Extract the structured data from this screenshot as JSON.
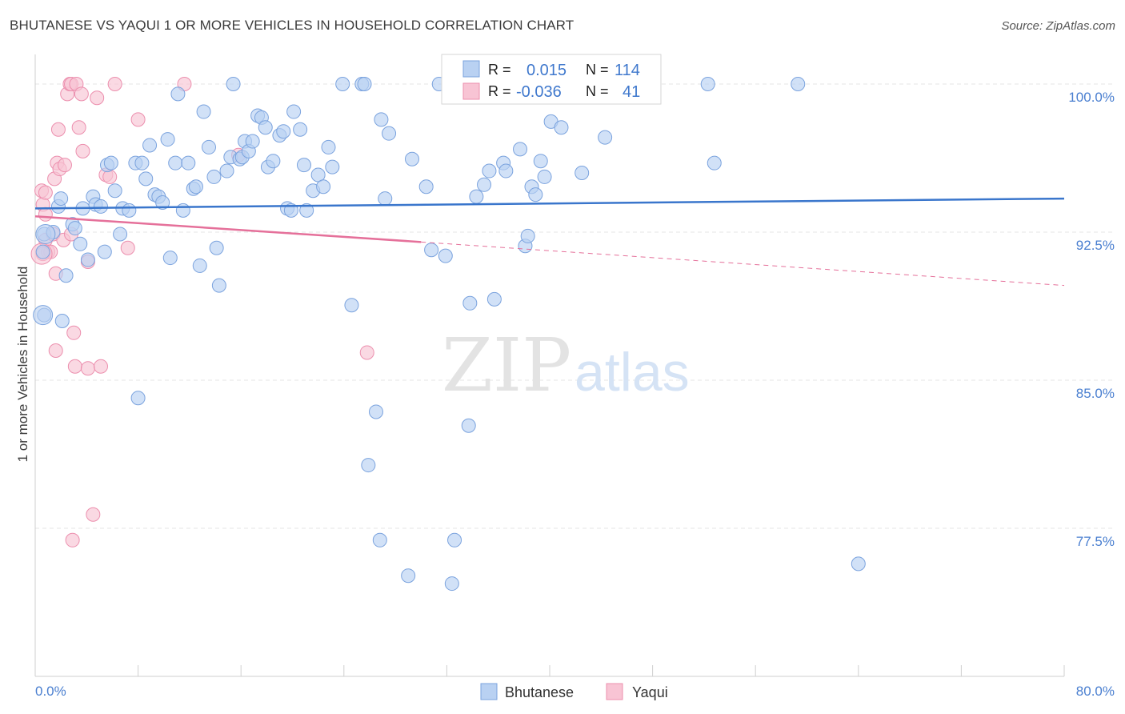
{
  "header": {
    "title": "BHUTANESE VS YAQUI 1 OR MORE VEHICLES IN HOUSEHOLD CORRELATION CHART",
    "source": "Source: ZipAtlas.com"
  },
  "watermark": {
    "zip": "ZIP",
    "atlas": "atlas"
  },
  "legend_box": {
    "rows": [
      {
        "r_label": "R =",
        "r_value": "0.015",
        "n_label": "N =",
        "n_value": "114",
        "color": "#b9d1f2"
      },
      {
        "r_label": "R =",
        "r_value": "-0.036",
        "n_label": "N =",
        "n_value": "41",
        "color": "#f8c4d4"
      }
    ]
  },
  "colors": {
    "blue_fill": "#b9d1f2",
    "blue_stroke": "#7ba3de",
    "blue_line": "#3a76cc",
    "pink_fill": "#f8c4d4",
    "pink_stroke": "#ec8fae",
    "pink_line": "#e5709a",
    "grid": "#e4e4e4",
    "tick_text": "#4a7fd0"
  },
  "chart_data": {
    "type": "scatter",
    "title": "BHUTANESE VS YAQUI 1 OR MORE VEHICLES IN HOUSEHOLD CORRELATION CHART",
    "xlabel": "",
    "ylabel": "1 or more Vehicles in Household",
    "xlim": [
      0,
      80
    ],
    "ylim": [
      70.0,
      101.5
    ],
    "x_tick_labels": [
      "0.0%",
      "80.0%"
    ],
    "y_ticks": [
      77.5,
      85.0,
      92.5,
      100.0
    ],
    "y_tick_labels": [
      "77.5%",
      "85.0%",
      "92.5%",
      "100.0%"
    ],
    "grid": true,
    "legend_placement": "bottom-center",
    "series": [
      {
        "name": "Bhutanese",
        "color": "#b9d1f2",
        "points": [
          [
            0.6,
            91.5
          ],
          [
            0.7,
            92.4
          ],
          [
            0.7,
            88.3
          ],
          [
            1.4,
            92.5
          ],
          [
            1.8,
            93.8
          ],
          [
            2.0,
            94.2
          ],
          [
            2.1,
            88.0
          ],
          [
            2.4,
            90.3
          ],
          [
            2.9,
            92.9
          ],
          [
            3.1,
            92.7
          ],
          [
            3.5,
            91.9
          ],
          [
            3.7,
            93.7
          ],
          [
            4.1,
            91.1
          ],
          [
            4.5,
            94.3
          ],
          [
            4.7,
            93.9
          ],
          [
            5.1,
            93.8
          ],
          [
            5.4,
            91.5
          ],
          [
            5.6,
            95.9
          ],
          [
            5.9,
            96.0
          ],
          [
            6.2,
            94.6
          ],
          [
            6.6,
            92.4
          ],
          [
            6.8,
            93.7
          ],
          [
            7.3,
            93.6
          ],
          [
            7.8,
            96.0
          ],
          [
            8.0,
            84.1
          ],
          [
            8.3,
            96.0
          ],
          [
            8.6,
            95.2
          ],
          [
            8.9,
            96.9
          ],
          [
            9.3,
            94.4
          ],
          [
            9.6,
            94.3
          ],
          [
            9.9,
            94.0
          ],
          [
            10.3,
            97.2
          ],
          [
            10.5,
            91.2
          ],
          [
            10.9,
            96.0
          ],
          [
            11.1,
            99.5
          ],
          [
            11.5,
            93.6
          ],
          [
            11.9,
            96.0
          ],
          [
            12.3,
            94.7
          ],
          [
            12.5,
            94.8
          ],
          [
            12.8,
            90.8
          ],
          [
            13.1,
            98.6
          ],
          [
            13.5,
            96.8
          ],
          [
            13.9,
            95.3
          ],
          [
            14.1,
            91.7
          ],
          [
            14.3,
            89.8
          ],
          [
            14.9,
            95.6
          ],
          [
            15.2,
            96.3
          ],
          [
            15.4,
            100.0
          ],
          [
            15.9,
            96.2
          ],
          [
            16.1,
            96.3
          ],
          [
            16.3,
            97.1
          ],
          [
            16.6,
            96.6
          ],
          [
            16.9,
            97.1
          ],
          [
            17.3,
            98.4
          ],
          [
            17.6,
            98.3
          ],
          [
            17.9,
            97.8
          ],
          [
            18.1,
            95.8
          ],
          [
            18.5,
            96.1
          ],
          [
            19.0,
            97.4
          ],
          [
            19.3,
            97.6
          ],
          [
            19.6,
            93.7
          ],
          [
            19.9,
            93.6
          ],
          [
            20.1,
            98.6
          ],
          [
            20.6,
            97.7
          ],
          [
            20.9,
            95.9
          ],
          [
            21.1,
            93.6
          ],
          [
            21.6,
            94.6
          ],
          [
            22.0,
            95.4
          ],
          [
            22.4,
            94.8
          ],
          [
            22.8,
            96.8
          ],
          [
            23.1,
            95.8
          ],
          [
            23.9,
            100.0
          ],
          [
            24.6,
            88.8
          ],
          [
            25.4,
            100.0
          ],
          [
            25.6,
            100.0
          ],
          [
            26.5,
            83.4
          ],
          [
            26.9,
            98.2
          ],
          [
            27.2,
            94.2
          ],
          [
            27.5,
            97.5
          ],
          [
            29.3,
            96.2
          ],
          [
            29.0,
            75.1
          ],
          [
            30.4,
            94.8
          ],
          [
            30.8,
            91.6
          ],
          [
            31.4,
            100.0
          ],
          [
            31.9,
            91.3
          ],
          [
            32.4,
            74.7
          ],
          [
            32.6,
            76.9
          ],
          [
            33.7,
            82.7
          ],
          [
            33.8,
            88.9
          ],
          [
            34.3,
            94.3
          ],
          [
            34.9,
            94.9
          ],
          [
            35.3,
            95.6
          ],
          [
            35.7,
            89.1
          ],
          [
            36.4,
            96.0
          ],
          [
            36.6,
            95.6
          ],
          [
            37.7,
            96.7
          ],
          [
            38.1,
            91.8
          ],
          [
            38.3,
            92.3
          ],
          [
            38.6,
            94.8
          ],
          [
            38.9,
            94.4
          ],
          [
            39.3,
            96.1
          ],
          [
            39.6,
            95.3
          ],
          [
            40.1,
            98.1
          ],
          [
            40.9,
            97.8
          ],
          [
            42.5,
            95.5
          ],
          [
            43.4,
            100.0
          ],
          [
            44.3,
            97.3
          ],
          [
            45.1,
            100.0
          ],
          [
            52.3,
            100.0
          ],
          [
            52.8,
            96.0
          ],
          [
            59.3,
            100.0
          ],
          [
            64.0,
            75.7
          ],
          [
            25.9,
            80.7
          ],
          [
            26.8,
            76.9
          ]
        ],
        "trend": {
          "x": [
            0,
            80
          ],
          "y": [
            93.7,
            94.2
          ]
        }
      },
      {
        "name": "Yaqui",
        "color": "#f8c4d4",
        "points": [
          [
            0.5,
            94.6
          ],
          [
            0.6,
            93.9
          ],
          [
            0.8,
            94.5
          ],
          [
            0.8,
            93.4
          ],
          [
            0.8,
            92.1
          ],
          [
            1.0,
            91.5
          ],
          [
            1.2,
            91.5
          ],
          [
            1.4,
            92.4
          ],
          [
            1.5,
            95.2
          ],
          [
            1.6,
            90.4
          ],
          [
            1.6,
            86.5
          ],
          [
            1.7,
            96.0
          ],
          [
            1.8,
            97.7
          ],
          [
            1.9,
            95.7
          ],
          [
            2.2,
            92.1
          ],
          [
            2.3,
            95.9
          ],
          [
            2.5,
            99.5
          ],
          [
            2.7,
            100.0
          ],
          [
            2.8,
            100.0
          ],
          [
            2.8,
            92.4
          ],
          [
            3.0,
            87.4
          ],
          [
            3.1,
            85.7
          ],
          [
            3.2,
            100.0
          ],
          [
            3.4,
            97.8
          ],
          [
            3.6,
            99.5
          ],
          [
            3.7,
            96.6
          ],
          [
            4.1,
            91.0
          ],
          [
            4.1,
            85.6
          ],
          [
            4.5,
            78.2
          ],
          [
            4.8,
            99.3
          ],
          [
            5.1,
            85.7
          ],
          [
            5.5,
            95.4
          ],
          [
            5.8,
            95.3
          ],
          [
            6.2,
            100.0
          ],
          [
            8.0,
            98.2
          ],
          [
            7.2,
            91.7
          ],
          [
            11.6,
            100.0
          ],
          [
            15.8,
            96.4
          ],
          [
            25.8,
            86.4
          ],
          [
            2.9,
            76.9
          ],
          [
            0.6,
            91.4
          ]
        ],
        "trend": {
          "x": [
            0,
            30
          ],
          "y": [
            93.3,
            92.0
          ]
        },
        "trend_extension": {
          "x": [
            30,
            80
          ],
          "y": [
            92.0,
            89.8
          ]
        }
      }
    ]
  }
}
